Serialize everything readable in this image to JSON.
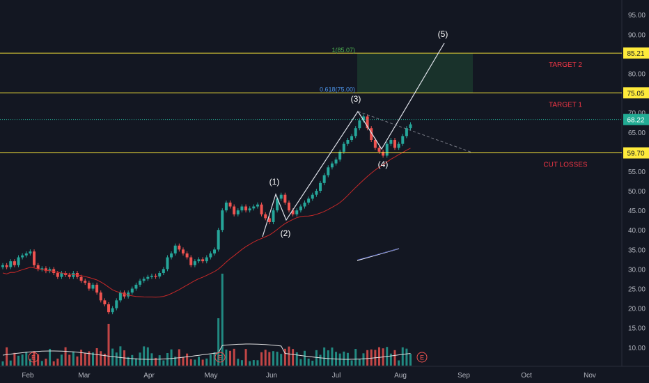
{
  "colors": {
    "background": "#131722",
    "up": "#26a69a",
    "down": "#ef5350",
    "level_line": "#ffeb3b",
    "ma_line": "#c62828",
    "volume_ma": "#e0e0e0",
    "wave_line": "#e0e3eb",
    "text_red": "#f23645",
    "axis_text": "#b2b5be",
    "current_line": "#22ab94",
    "target_zone": "#1b3a2e",
    "fib_label": "#4a90e2"
  },
  "chart_data": {
    "type": "candlestick",
    "x_ticks": [
      "Feb",
      "Mar",
      "Apr",
      "May",
      "Jun",
      "Jul",
      "Aug",
      "Sep",
      "Oct",
      "Nov"
    ],
    "y_ticks": [
      "95.00",
      "90.00",
      "85.00",
      "80.00",
      "75.00",
      "70.00",
      "65.00",
      "55.00",
      "50.00",
      "45.00",
      "40.00",
      "35.00",
      "30.00",
      "25.00",
      "20.00",
      "15.00",
      "10.00"
    ],
    "ylim": [
      8,
      97
    ],
    "price_series": [
      31,
      30.5,
      32,
      31,
      33,
      33.5,
      34,
      34.5,
      31,
      30,
      30.2,
      29.5,
      30,
      29,
      28,
      29,
      28.5,
      28,
      29,
      28,
      27,
      26.5,
      25,
      26,
      24,
      22,
      21,
      19,
      20,
      22,
      24,
      23,
      24,
      25,
      26,
      27,
      27.5,
      28,
      28.3,
      28.1,
      29,
      30,
      33,
      34,
      36,
      35,
      34,
      33,
      31,
      32,
      32.5,
      32,
      33,
      34,
      35,
      40,
      45,
      47,
      46,
      44,
      45,
      46,
      45,
      45.5,
      46,
      46.5,
      44,
      43,
      42,
      45,
      48,
      49,
      47,
      45,
      44,
      45,
      46,
      47,
      48,
      49,
      50,
      52,
      54,
      56,
      57,
      58,
      60,
      62,
      63,
      64,
      66,
      68,
      69,
      66,
      63,
      61,
      60,
      59,
      62,
      63,
      61,
      62,
      64,
      66,
      67
    ],
    "levels": [
      {
        "price": 85.21,
        "label": "85.21",
        "tag": "TARGET 2"
      },
      {
        "price": 75.05,
        "label": "75.05",
        "tag": "TARGET 1"
      },
      {
        "price": 59.7,
        "label": "59.70",
        "tag": "CUT LOSSES"
      }
    ],
    "current_price": {
      "price": 68.22,
      "label": "68.22"
    },
    "fib_labels": [
      {
        "price": 85.07,
        "label": "1(85.07)"
      },
      {
        "price": 75.0,
        "label": "0.618(75.00)"
      }
    ],
    "waves": [
      "(1)",
      "(2)",
      "(3)",
      "(4)",
      "(5)"
    ],
    "earnings_marker": "E"
  }
}
